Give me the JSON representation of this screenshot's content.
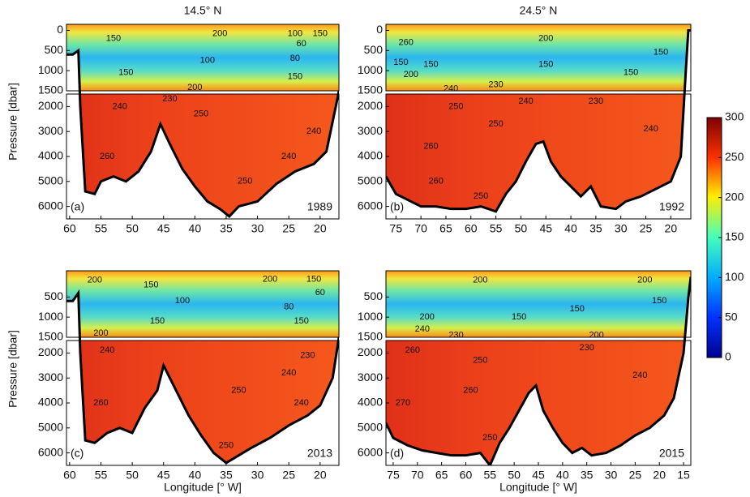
{
  "column_titles": [
    "14.5° N",
    "24.5° N"
  ],
  "y_label": "Pressure [dbar]",
  "x_label": "Longitude [° W]",
  "colorbar": {
    "lim": [
      0,
      300
    ],
    "ticks": [
      0,
      50,
      100,
      150,
      200,
      250,
      300
    ]
  },
  "chart_data": [
    {
      "type": "contour",
      "panel": "(a)",
      "year": "1989",
      "xlim": [
        60.5,
        17
      ],
      "xticks": [
        60,
        55,
        50,
        45,
        40,
        35,
        30,
        25,
        20
      ],
      "ylim": [
        -150,
        6500
      ],
      "ybreak": 1500,
      "yticks": [
        0,
        500,
        1000,
        1500,
        2000,
        3000,
        4000,
        5000,
        6000
      ],
      "bottom": {
        "x": [
          60.5,
          59.5,
          58.6,
          58.3,
          57.5,
          56,
          55,
          53,
          51,
          49,
          47,
          45.5,
          44,
          42,
          40,
          38,
          36,
          34.5,
          33,
          30,
          27,
          24,
          21,
          19,
          17.5,
          17
        ],
        "y": [
          600,
          600,
          500,
          2000,
          5400,
          5500,
          5000,
          4800,
          5000,
          4600,
          3800,
          2700,
          3500,
          4500,
          5200,
          5800,
          6100,
          6400,
          6000,
          5800,
          5100,
          4600,
          4300,
          3800,
          2000,
          1500
        ]
      },
      "contour_labels": [
        {
          "value": 150,
          "x": 53,
          "y": 200
        },
        {
          "value": 200,
          "x": 36,
          "y": 80
        },
        {
          "value": 100,
          "x": 24,
          "y": 80
        },
        {
          "value": 150,
          "x": 20,
          "y": 80
        },
        {
          "value": 60,
          "x": 23,
          "y": 330
        },
        {
          "value": 80,
          "x": 24,
          "y": 700
        },
        {
          "value": 100,
          "x": 38,
          "y": 750
        },
        {
          "value": 150,
          "x": 51,
          "y": 1050
        },
        {
          "value": 150,
          "x": 24,
          "y": 1150
        },
        {
          "value": 200,
          "x": 40,
          "y": 1420
        },
        {
          "value": 240,
          "x": 52,
          "y": 2000
        },
        {
          "value": 230,
          "x": 44,
          "y": 1700
        },
        {
          "value": 250,
          "x": 39,
          "y": 2300
        },
        {
          "value": 240,
          "x": 21,
          "y": 3000
        },
        {
          "value": 240,
          "x": 25,
          "y": 4000
        },
        {
          "value": 250,
          "x": 32,
          "y": 5000
        },
        {
          "value": 260,
          "x": 54,
          "y": 4000
        }
      ]
    },
    {
      "type": "contour",
      "panel": "(b)",
      "year": "1992",
      "xlim": [
        77,
        16
      ],
      "xticks": [
        75,
        70,
        65,
        60,
        55,
        50,
        45,
        40,
        35,
        30,
        25,
        20
      ],
      "ylim": [
        -150,
        6500
      ],
      "ybreak": 1500,
      "yticks": [
        0,
        500,
        1000,
        1500,
        2000,
        3000,
        4000,
        5000,
        6000
      ],
      "bottom": {
        "x": [
          77,
          75,
          72,
          70,
          67,
          64,
          61,
          58,
          55,
          53,
          51,
          49,
          47,
          45.5,
          44,
          42,
          40,
          38,
          36,
          34,
          31,
          29,
          26,
          23,
          20,
          18,
          17,
          16.5,
          16
        ],
        "y": [
          4800,
          5500,
          5800,
          6000,
          6000,
          6100,
          6100,
          6000,
          6200,
          5500,
          5000,
          4200,
          3500,
          3400,
          4200,
          4800,
          5200,
          5600,
          5200,
          6000,
          6100,
          5800,
          5600,
          5300,
          5000,
          4000,
          1000,
          0,
          0
        ]
      },
      "contour_labels": [
        {
          "value": 260,
          "x": 73,
          "y": 300
        },
        {
          "value": 200,
          "x": 45,
          "y": 200
        },
        {
          "value": 150,
          "x": 74,
          "y": 800
        },
        {
          "value": 150,
          "x": 68,
          "y": 850
        },
        {
          "value": 150,
          "x": 45,
          "y": 850
        },
        {
          "value": 150,
          "x": 22,
          "y": 550
        },
        {
          "value": 150,
          "x": 28,
          "y": 1050
        },
        {
          "value": 200,
          "x": 72,
          "y": 1100
        },
        {
          "value": 240,
          "x": 64,
          "y": 1450
        },
        {
          "value": 230,
          "x": 55,
          "y": 1350
        },
        {
          "value": 250,
          "x": 63,
          "y": 2000
        },
        {
          "value": 240,
          "x": 49,
          "y": 1800
        },
        {
          "value": 230,
          "x": 35,
          "y": 1800
        },
        {
          "value": 250,
          "x": 55,
          "y": 2700
        },
        {
          "value": 240,
          "x": 24,
          "y": 2900
        },
        {
          "value": 260,
          "x": 68,
          "y": 3600
        },
        {
          "value": 260,
          "x": 67,
          "y": 5000
        },
        {
          "value": 250,
          "x": 58,
          "y": 5600
        }
      ]
    },
    {
      "type": "contour",
      "panel": "(c)",
      "year": "2013",
      "xlim": [
        60.5,
        17
      ],
      "xticks": [
        60,
        55,
        50,
        45,
        40,
        35,
        30,
        25,
        20
      ],
      "ylim": [
        -150,
        6500
      ],
      "ybreak": 1500,
      "yticks": [
        500,
        1000,
        1500,
        2000,
        3000,
        4000,
        5000,
        6000
      ],
      "bottom": {
        "x": [
          60.5,
          59.5,
          58.6,
          58.3,
          57.5,
          56,
          54,
          52,
          50,
          48,
          46,
          45,
          43,
          41,
          39,
          37,
          35,
          33,
          31,
          28,
          25,
          22,
          20,
          18,
          17
        ],
        "y": [
          600,
          600,
          400,
          2000,
          5500,
          5600,
          5200,
          5000,
          5200,
          4200,
          3500,
          2500,
          3500,
          4500,
          5300,
          6000,
          6400,
          6100,
          5800,
          5400,
          4900,
          4500,
          4100,
          3000,
          1500
        ]
      },
      "contour_labels": [
        {
          "value": 200,
          "x": 56,
          "y": 80
        },
        {
          "value": 150,
          "x": 47,
          "y": 200
        },
        {
          "value": 200,
          "x": 28,
          "y": 60
        },
        {
          "value": 150,
          "x": 21,
          "y": 60
        },
        {
          "value": 100,
          "x": 42,
          "y": 600
        },
        {
          "value": 80,
          "x": 25,
          "y": 750
        },
        {
          "value": 60,
          "x": 20,
          "y": 400
        },
        {
          "value": 150,
          "x": 46,
          "y": 1100
        },
        {
          "value": 150,
          "x": 23,
          "y": 1100
        },
        {
          "value": 200,
          "x": 55,
          "y": 1400
        },
        {
          "value": 240,
          "x": 54,
          "y": 1900
        },
        {
          "value": 230,
          "x": 22,
          "y": 2100
        },
        {
          "value": 240,
          "x": 25,
          "y": 2800
        },
        {
          "value": 250,
          "x": 33,
          "y": 3500
        },
        {
          "value": 240,
          "x": 23,
          "y": 4000
        },
        {
          "value": 260,
          "x": 55,
          "y": 4000
        },
        {
          "value": 250,
          "x": 35,
          "y": 5700
        }
      ]
    },
    {
      "type": "contour",
      "panel": "(d)",
      "year": "2015",
      "xlim": [
        76.5,
        13.5
      ],
      "xticks": [
        75,
        70,
        65,
        60,
        55,
        50,
        45,
        40,
        35,
        30,
        25,
        20,
        15
      ],
      "ylim": [
        -150,
        6500
      ],
      "ybreak": 1500,
      "yticks": [
        500,
        1000,
        1500,
        2000,
        3000,
        4000,
        5000,
        6000
      ],
      "bottom": {
        "x": [
          76.5,
          75,
          72,
          69,
          66,
          63,
          60,
          57,
          55,
          53,
          51,
          49,
          47,
          45.5,
          44,
          42,
          40,
          38,
          36,
          34,
          31,
          28,
          25,
          22,
          19,
          17,
          15,
          14,
          13.5
        ],
        "y": [
          4800,
          5400,
          5700,
          5900,
          6000,
          6100,
          6100,
          6000,
          6500,
          5600,
          5000,
          4300,
          3600,
          3300,
          4300,
          5000,
          5600,
          6000,
          5800,
          6100,
          6000,
          5700,
          5300,
          5000,
          4500,
          3800,
          2000,
          500,
          0
        ]
      },
      "contour_labels": [
        {
          "value": 200,
          "x": 57,
          "y": 80
        },
        {
          "value": 200,
          "x": 23,
          "y": 80
        },
        {
          "value": 150,
          "x": 37,
          "y": 800
        },
        {
          "value": 150,
          "x": 49,
          "y": 1000
        },
        {
          "value": 150,
          "x": 20,
          "y": 600
        },
        {
          "value": 200,
          "x": 68,
          "y": 1000
        },
        {
          "value": 240,
          "x": 69,
          "y": 1300
        },
        {
          "value": 230,
          "x": 62,
          "y": 1450
        },
        {
          "value": 200,
          "x": 33,
          "y": 1450
        },
        {
          "value": 260,
          "x": 71,
          "y": 1900
        },
        {
          "value": 250,
          "x": 57,
          "y": 2300
        },
        {
          "value": 230,
          "x": 35,
          "y": 1800
        },
        {
          "value": 240,
          "x": 24,
          "y": 2900
        },
        {
          "value": 260,
          "x": 59,
          "y": 3500
        },
        {
          "value": 270,
          "x": 73,
          "y": 4000
        },
        {
          "value": 250,
          "x": 55,
          "y": 5400
        }
      ]
    }
  ]
}
